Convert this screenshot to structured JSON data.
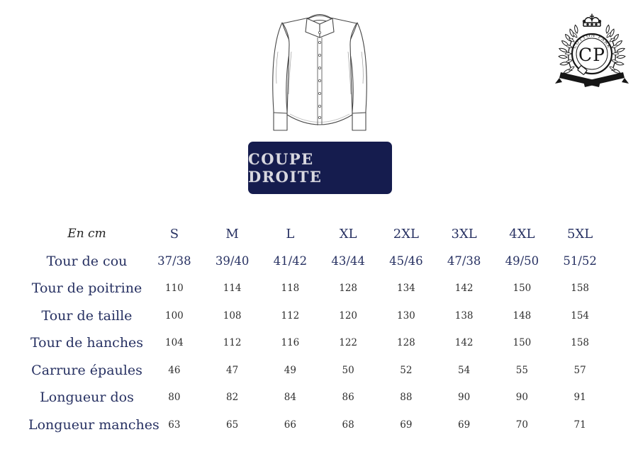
{
  "logo": {
    "brand_arc_text": "COTTON PARK",
    "monogram": "CP"
  },
  "fit_banner": {
    "label": "COUPE DROITE"
  },
  "size_chart": {
    "unit_header": "En cm",
    "size_columns": [
      "S",
      "M",
      "L",
      "XL",
      "2XL",
      "3XL",
      "4XL",
      "5XL"
    ],
    "rows": [
      {
        "label": "Tour de cou",
        "accent": true,
        "values": [
          "37/38",
          "39/40",
          "41/42",
          "43/44",
          "45/46",
          "47/38",
          "49/50",
          "51/52"
        ]
      },
      {
        "label": "Tour de poitrine",
        "accent": false,
        "values": [
          "110",
          "114",
          "118",
          "128",
          "134",
          "142",
          "150",
          "158"
        ]
      },
      {
        "label": "Tour de taille",
        "accent": false,
        "values": [
          "100",
          "108",
          "112",
          "120",
          "130",
          "138",
          "148",
          "154"
        ]
      },
      {
        "label": "Tour de hanches",
        "accent": false,
        "values": [
          "104",
          "112",
          "116",
          "122",
          "128",
          "142",
          "150",
          "158"
        ]
      },
      {
        "label": "Carrure épaules",
        "accent": false,
        "values": [
          "46",
          "47",
          "49",
          "50",
          "52",
          "54",
          "55",
          "57"
        ]
      },
      {
        "label": "Longueur dos",
        "accent": false,
        "values": [
          "80",
          "82",
          "84",
          "86",
          "88",
          "90",
          "90",
          "91"
        ]
      },
      {
        "label": "Longueur manches",
        "accent": false,
        "values": [
          "63",
          "65",
          "66",
          "68",
          "69",
          "69",
          "70",
          "71"
        ]
      }
    ]
  },
  "colors": {
    "navy_text": "#273162",
    "banner_bg": "#151c4e",
    "banner_text": "#d8d8e0",
    "measure_text": "#2e2e2e",
    "logo_ink": "#161616",
    "line_art": "#474747"
  }
}
